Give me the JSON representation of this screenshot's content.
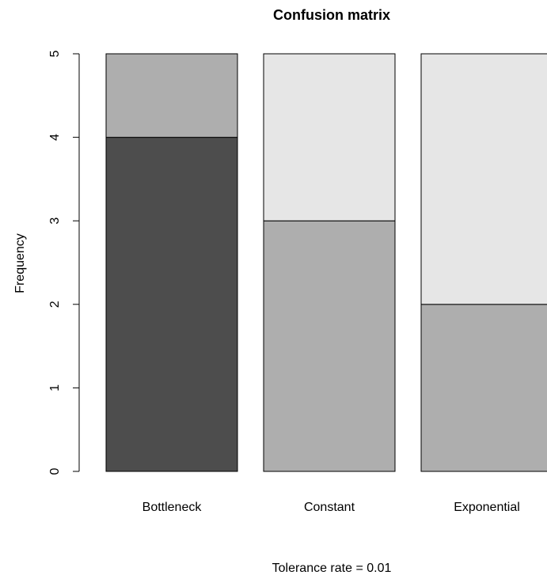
{
  "chart_data": {
    "type": "bar",
    "stacked": true,
    "title": "Confusion matrix",
    "ylabel": "Frequency",
    "xlabel": "",
    "caption": "Tolerance rate = 0.01",
    "categories": [
      "Bottleneck",
      "Constant",
      "Exponential"
    ],
    "series": [
      {
        "color": "#4d4d4d",
        "values": [
          4,
          0,
          0
        ]
      },
      {
        "color": "#aeaeae",
        "values": [
          1,
          3,
          2
        ]
      },
      {
        "color": "#e6e6e6",
        "values": [
          0,
          2,
          3
        ]
      }
    ],
    "ylim": [
      0,
      5
    ],
    "yticks": [
      0,
      1,
      2,
      3,
      4,
      5
    ],
    "grid": false,
    "legend": "none"
  }
}
